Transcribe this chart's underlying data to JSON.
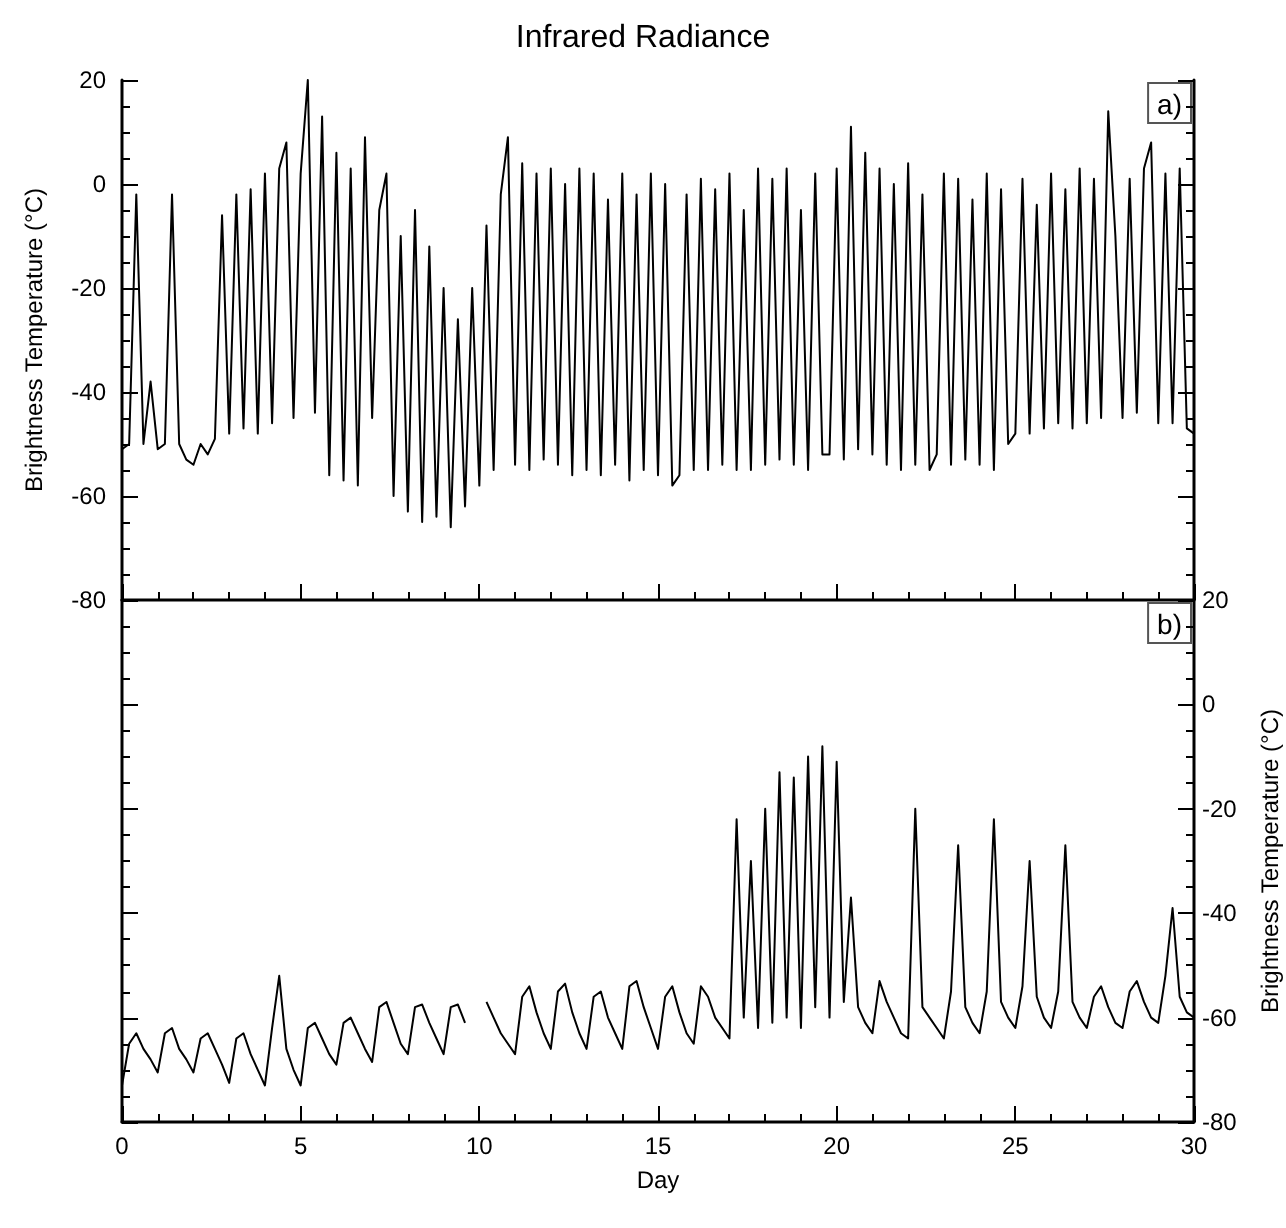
{
  "chart_data": [
    {
      "type": "line",
      "title": "Infrared Radiance",
      "ylabel": "Brightness Temperature (°C)",
      "annotations": [
        "a)"
      ],
      "tick_labels": "y",
      "xlim": [
        0,
        30
      ],
      "xticks": [
        0,
        5,
        10,
        15,
        20,
        25,
        30
      ],
      "ylim": [
        -80,
        20
      ],
      "yticks": [
        -80,
        -60,
        -40,
        -20,
        0,
        20
      ],
      "x": [
        0,
        0.2,
        0.4,
        0.6,
        0.8,
        1,
        1.2,
        1.4,
        1.6,
        1.8,
        2,
        2.2,
        2.4,
        2.6,
        2.8,
        3,
        3.2,
        3.4,
        3.6,
        3.8,
        4,
        4.2,
        4.4,
        4.6,
        4.8,
        5,
        5.2,
        5.4,
        5.6,
        5.8,
        6,
        6.2,
        6.4,
        6.6,
        6.8,
        7,
        7.2,
        7.4,
        7.6,
        7.8,
        8,
        8.2,
        8.4,
        8.6,
        8.8,
        9,
        9.2,
        9.4,
        9.6,
        9.8,
        10,
        10.2,
        10.4,
        10.6,
        10.8,
        11,
        11.2,
        11.4,
        11.6,
        11.8,
        12,
        12.2,
        12.4,
        12.6,
        12.8,
        13,
        13.2,
        13.4,
        13.6,
        13.8,
        14,
        14.2,
        14.4,
        14.6,
        14.8,
        15,
        15.2,
        15.4,
        15.6,
        15.8,
        16,
        16.2,
        16.4,
        16.6,
        16.8,
        17,
        17.2,
        17.4,
        17.6,
        17.8,
        18,
        18.2,
        18.4,
        18.6,
        18.8,
        19,
        19.2,
        19.4,
        19.6,
        19.8,
        20,
        20.2,
        20.4,
        20.6,
        20.8,
        21,
        21.2,
        21.4,
        21.6,
        21.8,
        22,
        22.2,
        22.4,
        22.6,
        22.8,
        23,
        23.2,
        23.4,
        23.6,
        23.8,
        24,
        24.2,
        24.4,
        24.6,
        24.8,
        25,
        25.2,
        25.4,
        25.6,
        25.8,
        26,
        26.2,
        26.4,
        26.6,
        26.8,
        27,
        27.2,
        27.4,
        27.6,
        27.8,
        28,
        28.2,
        28.4,
        28.6,
        28.8,
        29,
        29.2,
        29.4,
        29.6,
        29.8,
        30
      ],
      "series": [
        {
          "color": "#000000",
          "values": [
            -51,
            -50,
            -2,
            -50,
            -38,
            -51,
            -50,
            -2,
            -50,
            -53,
            -54,
            -50,
            -52,
            -49,
            -6,
            -48,
            -2,
            -47,
            -1,
            -48,
            2,
            -46,
            3,
            8,
            -45,
            2,
            20,
            -44,
            13,
            -56,
            6,
            -57,
            3,
            -58,
            9,
            -45,
            -5,
            2,
            -60,
            -10,
            -63,
            -5,
            -65,
            -12,
            -64,
            -20,
            -66,
            -26,
            -62,
            -20,
            -58,
            -8,
            -55,
            -2,
            9,
            -54,
            4,
            -55,
            2,
            -53,
            3,
            -54,
            0,
            -56,
            3,
            -55,
            2,
            -56,
            -3,
            -54,
            2,
            -57,
            -2,
            -55,
            2,
            -56,
            0,
            -58,
            -56,
            -2,
            -55,
            1,
            -55,
            -1,
            -54,
            2,
            -55,
            -5,
            -55,
            3,
            -54,
            1,
            -53,
            3,
            -54,
            -5,
            -55,
            2,
            -52,
            -52,
            3,
            -53,
            11,
            -51,
            6,
            -52,
            3,
            -54,
            0,
            -55,
            4,
            -54,
            -2,
            -55,
            -52,
            2,
            -54,
            1,
            -53,
            -3,
            -54,
            2,
            -55,
            -1,
            -50,
            -48,
            1,
            -48,
            -4,
            -47,
            2,
            -46,
            -1,
            -47,
            3,
            -46,
            1,
            -45,
            14,
            -10,
            -45,
            1,
            -44,
            3,
            8,
            -46,
            2,
            -46,
            3,
            -47,
            -48
          ]
        }
      ]
    },
    {
      "type": "line",
      "xlabel": "Day",
      "y2label": "Brightness Temperature (°C)",
      "annotations": [
        "b)"
      ],
      "xlim": [
        0,
        30
      ],
      "xticks": [
        0,
        5,
        10,
        15,
        20,
        25,
        30
      ],
      "y2lim": [
        -80,
        20
      ],
      "y2ticks": [
        -80,
        -60,
        -40,
        -20,
        0,
        20
      ],
      "x": [
        0,
        0.2,
        0.4,
        0.6,
        0.8,
        1,
        1.2,
        1.4,
        1.6,
        1.8,
        2,
        2.2,
        2.4,
        2.6,
        2.8,
        3,
        3.2,
        3.4,
        3.6,
        3.8,
        4,
        4.2,
        4.4,
        4.6,
        4.8,
        5,
        5.2,
        5.4,
        5.6,
        5.8,
        6,
        6.2,
        6.4,
        6.6,
        6.8,
        7,
        7.2,
        7.4,
        7.6,
        7.8,
        8,
        8.2,
        8.4,
        8.6,
        8.8,
        9,
        9.2,
        9.4,
        9.6,
        9.8,
        10,
        10.2,
        10.4,
        10.6,
        10.8,
        11,
        11.2,
        11.4,
        11.6,
        11.8,
        12,
        12.2,
        12.4,
        12.6,
        12.8,
        13,
        13.2,
        13.4,
        13.6,
        13.8,
        14,
        14.2,
        14.4,
        14.6,
        14.8,
        15,
        15.2,
        15.4,
        15.6,
        15.8,
        16,
        16.2,
        16.4,
        16.6,
        16.8,
        17,
        17.2,
        17.4,
        17.6,
        17.8,
        18,
        18.2,
        18.4,
        18.6,
        18.8,
        19,
        19.2,
        19.4,
        19.6,
        19.8,
        20,
        20.2,
        20.4,
        20.6,
        20.8,
        21,
        21.2,
        21.4,
        21.6,
        21.8,
        22,
        22.2,
        22.4,
        22.6,
        22.8,
        23,
        23.2,
        23.4,
        23.6,
        23.8,
        24,
        24.2,
        24.4,
        24.6,
        24.8,
        25,
        25.2,
        25.4,
        25.6,
        25.8,
        26,
        26.2,
        26.4,
        26.6,
        26.8,
        27,
        27.2,
        27.4,
        27.6,
        27.8,
        28,
        28.2,
        28.4,
        28.6,
        28.8,
        29,
        29.2,
        29.4,
        29.6,
        29.8,
        30
      ],
      "series": [
        {
          "color": "#000000",
          "axis": "y2",
          "values": [
            -73,
            -65,
            -63,
            -66,
            -68,
            -70.5,
            -63,
            -62,
            -66,
            -68,
            -70.5,
            -64,
            -63,
            -66,
            -69,
            -72.5,
            -64,
            -63,
            -67,
            -70,
            -73,
            -62,
            -52,
            -66,
            -70,
            -73,
            -62,
            -61,
            -64,
            -67,
            -69,
            -61,
            -60,
            -63,
            -66,
            -68.5,
            -58,
            -57,
            -61,
            -65,
            -67,
            -58,
            -57.5,
            -61,
            -64,
            -67,
            -58,
            -57.5,
            -61,
            null,
            null,
            -57,
            -60,
            -63,
            -65,
            -67,
            -56,
            -54,
            -59,
            -63,
            -66,
            -55,
            -53.5,
            -59,
            -63,
            -66,
            -56,
            -55,
            -60,
            -63,
            -66,
            -54,
            -53,
            -58,
            -62,
            -66,
            -56,
            -54,
            -59,
            -63,
            -65,
            -54,
            -56,
            -60,
            -62,
            -64,
            -22,
            -60,
            -30,
            -62,
            -20,
            -61,
            -13,
            -60,
            -14,
            -62,
            -10,
            -58,
            -8,
            -60,
            -11,
            -57,
            -37,
            -58,
            -61,
            -63,
            -53,
            -57,
            -60,
            -63,
            -64,
            -20,
            -58,
            -60,
            -62,
            -64,
            -55,
            -27,
            -58,
            -61,
            -63,
            -55,
            -22,
            -57,
            -60,
            -62,
            -54,
            -30,
            -56,
            -60,
            -62,
            -55,
            -27,
            -57,
            -60,
            -62,
            -56,
            -54,
            -58,
            -61,
            -62,
            -55,
            -53,
            -57,
            -60,
            -61,
            -52,
            -39,
            -56,
            -59,
            -60
          ]
        }
      ]
    }
  ]
}
